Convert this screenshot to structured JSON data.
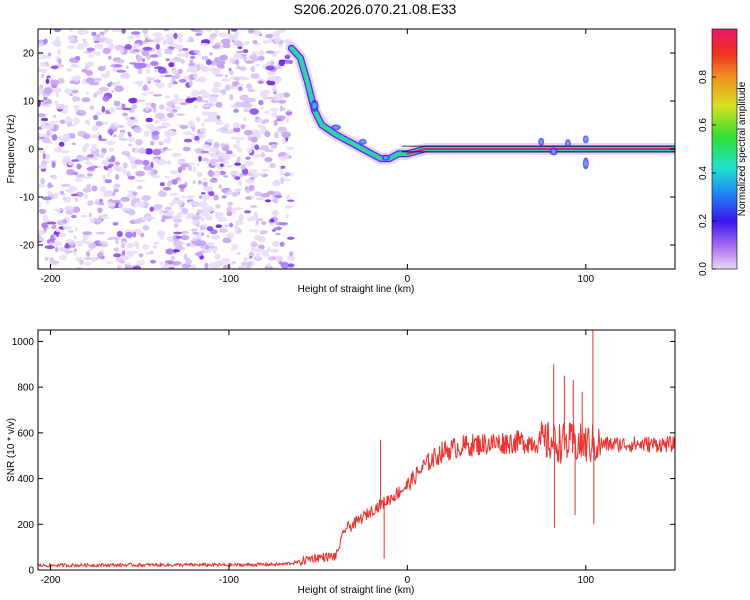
{
  "title": "S206.2026.070.21.08.E33",
  "colors": {
    "snr_line": "#e8332f",
    "spectrogram_noise": "#8a3cf0",
    "track_core": "#e8234f",
    "track_edge": "#28c8f0"
  },
  "chart_data": [
    {
      "type": "heatmap",
      "name": "spectrogram",
      "xlabel": "Height of straight line (km)",
      "ylabel": "Frequency (Hz)",
      "xlim": [
        -207,
        150
      ],
      "ylim": [
        -25,
        25
      ],
      "xticks": [
        -200,
        -100,
        0,
        100
      ],
      "yticks": [
        20,
        10,
        0,
        -10,
        -20
      ],
      "noise_region_x": [
        -207,
        -65
      ],
      "track": {
        "x": [
          -65,
          -60,
          -56,
          -52,
          -48,
          -44,
          -40,
          -35,
          -30,
          -25,
          -20,
          -15,
          -10,
          -5,
          0,
          10,
          20,
          40,
          60,
          75,
          85,
          100,
          120,
          150
        ],
        "y": [
          21,
          19,
          14,
          8,
          5,
          4,
          3,
          2,
          1,
          0,
          -1,
          -2,
          -2,
          -1,
          -1,
          0,
          0,
          0,
          0,
          0,
          0,
          0,
          0,
          0
        ]
      },
      "colorbar": {
        "label": "Normalized spectral amplitude",
        "range": [
          0,
          1
        ],
        "ticks": [
          "0.0",
          "0.2",
          "0.4",
          "0.6",
          "0.8"
        ]
      }
    },
    {
      "type": "line",
      "name": "snr",
      "xlabel": "Height of straight line (km)",
      "ylabel": "SNR (10 * v/v)",
      "xlim": [
        -207,
        150
      ],
      "ylim": [
        0,
        1050
      ],
      "xticks": [
        -200,
        -100,
        0,
        100
      ],
      "yticks": [
        0,
        200,
        400,
        600,
        800,
        1000
      ],
      "series": [
        {
          "name": "SNR",
          "envelope": {
            "x": [
              -207,
              -150,
              -100,
              -70,
              -60,
              -55,
              -50,
              -40,
              -35,
              -30,
              -20,
              -10,
              0,
              10,
              20,
              30,
              40,
              60,
              80,
              100,
              120,
              150
            ],
            "y": [
              20,
              22,
              22,
              25,
              35,
              50,
              55,
              60,
              180,
              200,
              260,
              310,
              370,
              460,
              520,
              540,
              550,
              560,
              560,
              550,
              550,
              550
            ]
          },
          "spikes": [
            {
              "x": -15,
              "y": 570
            },
            {
              "x": -13,
              "y": 50
            },
            {
              "x": 82,
              "y": 900
            },
            {
              "x": 82.5,
              "y": 185
            },
            {
              "x": 88,
              "y": 850
            },
            {
              "x": 93,
              "y": 830
            },
            {
              "x": 94,
              "y": 240
            },
            {
              "x": 98,
              "y": 780
            },
            {
              "x": 104,
              "y": 1050
            },
            {
              "x": 104.5,
              "y": 200
            }
          ]
        }
      ]
    }
  ]
}
